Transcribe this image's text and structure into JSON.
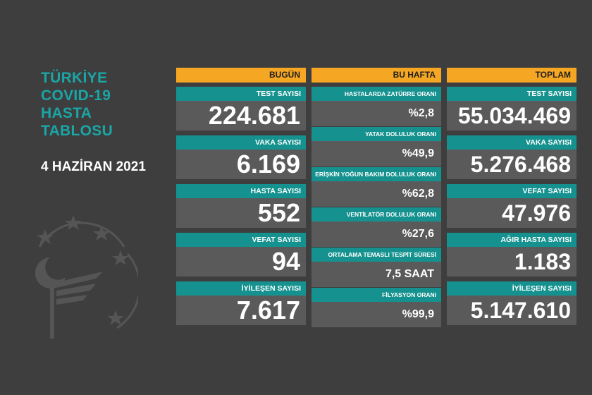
{
  "title_lines": [
    "TÜRKİYE",
    "COVID-19",
    "HASTA",
    "TABLOSU"
  ],
  "date": "4 HAZİRAN 2021",
  "colors": {
    "background": "#3e3e3e",
    "header": "#f5a623",
    "label": "#15928f",
    "value_bg": "#5a5a5a",
    "title": "#1aa6a6"
  },
  "columns": {
    "today": {
      "header": "BUGÜN",
      "items": [
        {
          "label": "TEST SAYISI",
          "value": "224.681"
        },
        {
          "label": "VAKA SAYISI",
          "value": "6.169"
        },
        {
          "label": "HASTA SAYISI",
          "value": "552"
        },
        {
          "label": "VEFAT SAYISI",
          "value": "94"
        },
        {
          "label": "İYİLEŞEN SAYISI",
          "value": "7.617"
        }
      ]
    },
    "week": {
      "header": "BU HAFTA",
      "items": [
        {
          "label": "HASTALARDA ZATÜRRE ORANI",
          "value": "%2,8"
        },
        {
          "label": "YATAK DOLULUK ORANI",
          "value": "%49,9"
        },
        {
          "label": "ERİŞKİN YOĞUN BAKIM DOLULUK ORANI",
          "value": "%62,8"
        },
        {
          "label": "VENTİLATÖR DOLULUK ORANI",
          "value": "%27,6"
        },
        {
          "label": "ORTALAMA TEMASLI TESPİT SÜRESİ",
          "value": "7,5 SAAT"
        },
        {
          "label": "FİLYASYON ORANI",
          "value": "%99,9"
        }
      ]
    },
    "total": {
      "header": "TOPLAM",
      "items": [
        {
          "label": "TEST SAYISI",
          "value": "55.034.469"
        },
        {
          "label": "VAKA SAYISI",
          "value": "5.276.468"
        },
        {
          "label": "VEFAT SAYISI",
          "value": "47.976"
        },
        {
          "label": "AĞIR HASTA SAYISI",
          "value": "1.183"
        },
        {
          "label": "İYİLEŞEN SAYISI",
          "value": "5.147.610"
        }
      ]
    }
  }
}
